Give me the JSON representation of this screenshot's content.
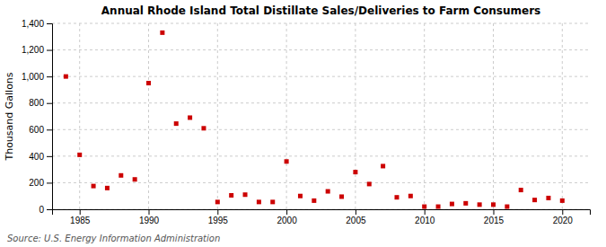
{
  "chart_data": {
    "type": "scatter",
    "title": "Annual Rhode Island Total Distillate Sales/Deliveries to Farm Consumers",
    "ylabel": "Thousand Gallons",
    "annotations": [
      "Source: U.S. Energy Information Administration"
    ],
    "color": "#cc0000",
    "marker": "square",
    "x": [
      1984,
      1985,
      1986,
      1987,
      1988,
      1989,
      1990,
      1991,
      1992,
      1993,
      1994,
      1995,
      1996,
      1997,
      1998,
      1999,
      2000,
      2001,
      2002,
      2003,
      2004,
      2005,
      2006,
      2007,
      2008,
      2009,
      2010,
      2011,
      2012,
      2013,
      2014,
      2015,
      2016,
      2017,
      2018,
      2019,
      2020
    ],
    "values": [
      1000,
      410,
      175,
      160,
      255,
      225,
      950,
      1330,
      645,
      690,
      610,
      55,
      105,
      110,
      55,
      55,
      360,
      100,
      65,
      135,
      95,
      280,
      190,
      325,
      90,
      100,
      20,
      20,
      40,
      45,
      35,
      35,
      20,
      145,
      70,
      85,
      65
    ],
    "xlim": [
      1983,
      2022
    ],
    "ylim": [
      0,
      1400
    ],
    "xticks": [
      1985,
      1990,
      1995,
      2000,
      2005,
      2010,
      2015,
      2020
    ],
    "yticks": [
      0,
      200,
      400,
      600,
      800,
      {
        "value": 1000,
        "label": "1,000"
      },
      {
        "value": 1200,
        "label": "1,200"
      },
      {
        "value": 1400,
        "label": "1,400"
      }
    ],
    "grid": true
  }
}
